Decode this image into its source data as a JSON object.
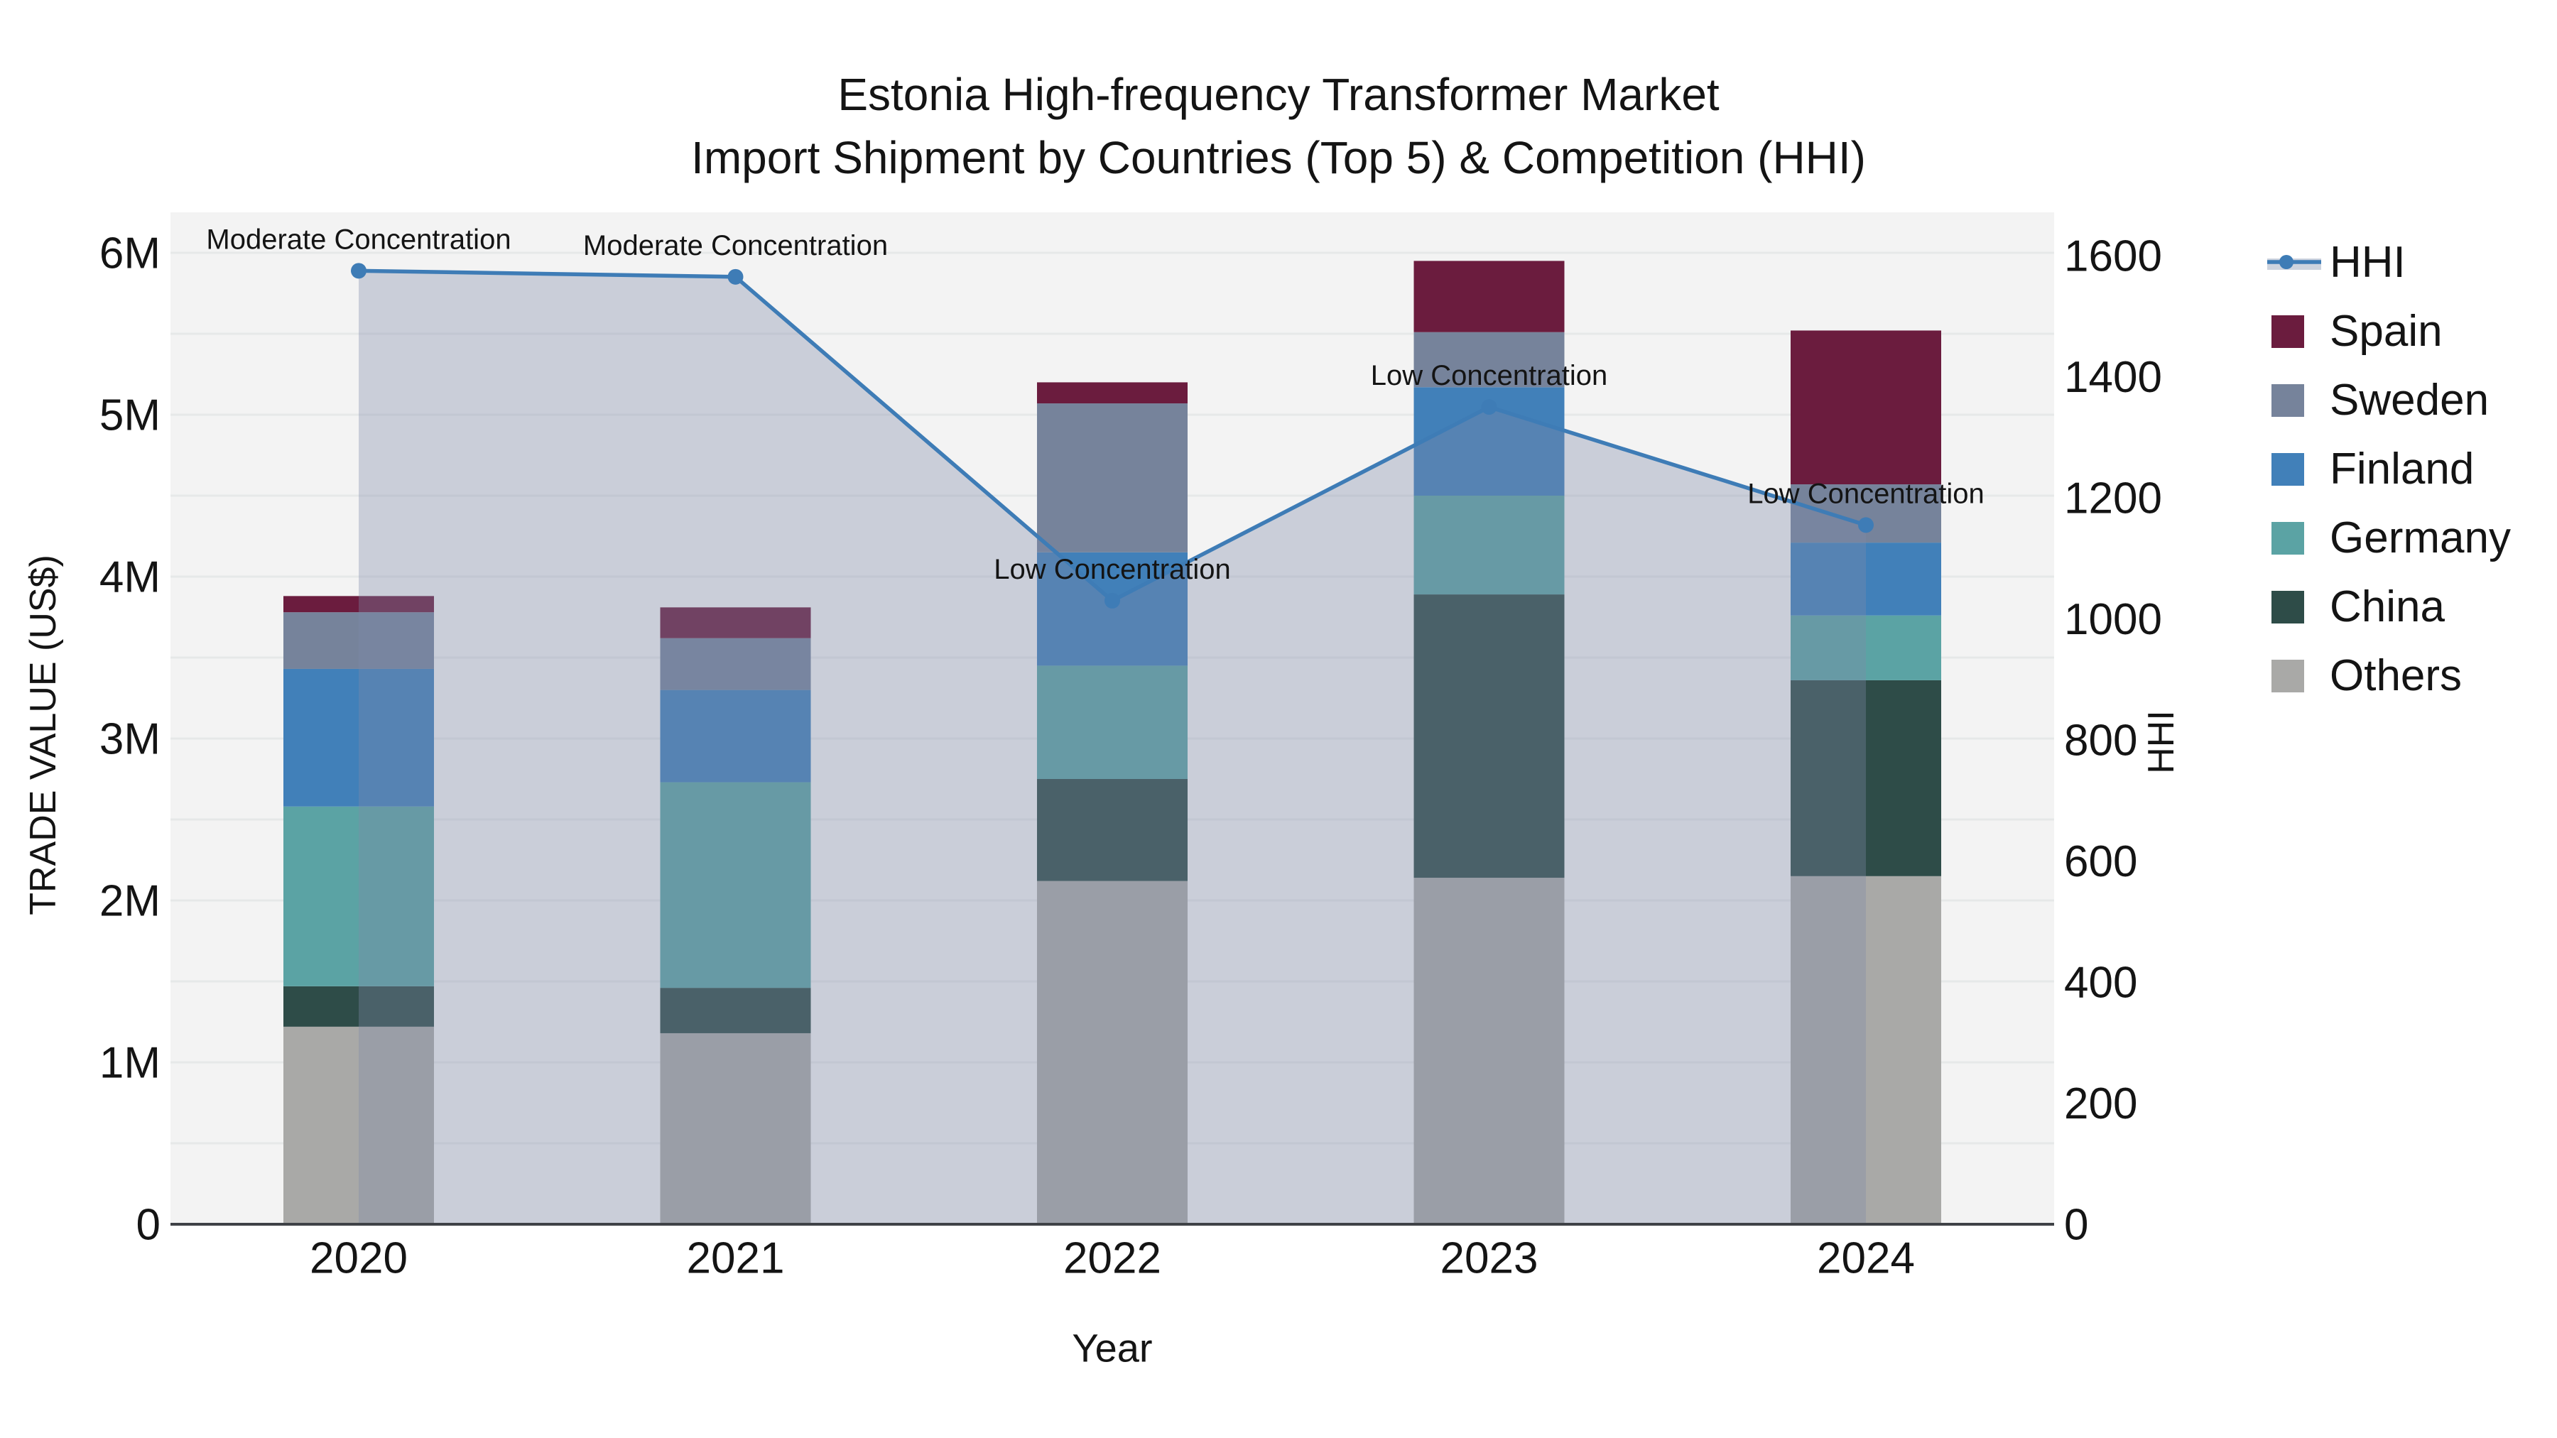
{
  "chart_data": {
    "type": "combo-stacked-bar-with-line",
    "title": "Estonia High-frequency Transformer Market",
    "subtitle": "Import Shipment by Countries (Top 5) & Competition (HHI)",
    "xlabel": "Year",
    "ylabel": "TRADE VALUE (US$)",
    "y2label": "HHI",
    "categories": [
      "2020",
      "2021",
      "2022",
      "2023",
      "2024"
    ],
    "series": [
      {
        "name": "Others",
        "color": "#a9a9a7",
        "values_musd": [
          1.22,
          1.18,
          2.12,
          2.14,
          2.15
        ]
      },
      {
        "name": "China",
        "color": "#2e4c48",
        "values_musd": [
          0.25,
          0.28,
          0.63,
          1.75,
          1.21
        ]
      },
      {
        "name": "Germany",
        "color": "#5ba3a4",
        "values_musd": [
          1.11,
          1.27,
          0.7,
          0.61,
          0.4
        ]
      },
      {
        "name": "Finland",
        "color": "#4180b9",
        "values_musd": [
          0.85,
          0.57,
          0.7,
          0.67,
          0.45
        ]
      },
      {
        "name": "Sweden",
        "color": "#76839b",
        "values_musd": [
          0.35,
          0.32,
          0.92,
          0.34,
          0.36
        ]
      },
      {
        "name": "Spain",
        "color": "#6b1c3e",
        "values_musd": [
          0.1,
          0.19,
          0.13,
          0.44,
          0.95
        ]
      }
    ],
    "stack_order_bottom_to_top": [
      "Others",
      "China",
      "Germany",
      "Finland",
      "Sweden",
      "Spain"
    ],
    "stack_totals_musd": [
      3.88,
      3.81,
      5.2,
      5.95,
      5.52
    ],
    "hhi": {
      "name": "HHI",
      "values": [
        1575,
        1565,
        1030,
        1350,
        1155
      ],
      "line_color": "#3e7cb6",
      "marker": "circle",
      "area_fill": "rgba(125,138,168,0.35)",
      "legend_band_color": "#cdd3de"
    },
    "annotations": [
      "Moderate Concentration",
      "Moderate Concentration",
      "Low Concentration",
      "Low Concentration",
      "Low Concentration"
    ],
    "y_axis": {
      "title": "TRADE VALUE (US$)",
      "ticks": [
        "0",
        "1M",
        "2M",
        "3M",
        "4M",
        "5M",
        "6M"
      ],
      "tick_values_musd": [
        0,
        1,
        2,
        3,
        4,
        5,
        6
      ],
      "range_musd": [
        0,
        6.25
      ],
      "grid_step_musd": 0.5
    },
    "y2_axis": {
      "title": "HHI",
      "ticks": [
        "0",
        "200",
        "400",
        "600",
        "800",
        "1000",
        "1200",
        "1400",
        "1600"
      ],
      "tick_values": [
        0,
        200,
        400,
        600,
        800,
        1000,
        1200,
        1400,
        1600
      ],
      "range": [
        0,
        1671
      ]
    },
    "legend": {
      "position": "right",
      "entries": [
        "HHI",
        "Spain",
        "Sweden",
        "Finland",
        "Germany",
        "China",
        "Others"
      ]
    },
    "style": {
      "figure_bg": "#ffffff",
      "plot_bg": "#f3f3f3",
      "grid_color": "#e6e8e8",
      "axis_line_color": "#3f4247",
      "text_color": "#141414"
    }
  }
}
